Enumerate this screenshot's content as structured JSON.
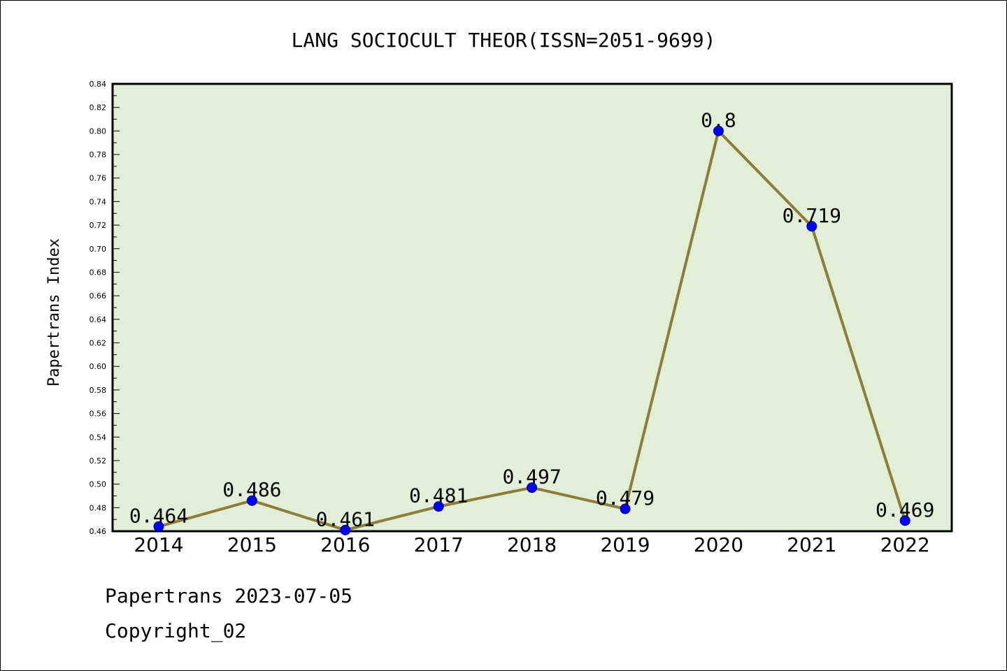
{
  "chart_data": {
    "type": "line",
    "title": "LANG SOCIOCULT THEOR(ISSN=2051-9699)",
    "xlabel": "",
    "ylabel": "Papertrans Index",
    "categories": [
      "2014",
      "2015",
      "2016",
      "2017",
      "2018",
      "2019",
      "2020",
      "2021",
      "2022"
    ],
    "series": [
      {
        "values": [
          0.464,
          0.486,
          0.461,
          0.481,
          0.497,
          0.479,
          0.8,
          0.719,
          0.469
        ],
        "labels": [
          "0.464",
          "0.486",
          "0.461",
          "0.481",
          "0.497",
          "0.479",
          "0.8",
          "0.719",
          "0.469"
        ]
      }
    ],
    "ylim": [
      0.46,
      0.84
    ],
    "yticks": [
      "0.46",
      "0.48",
      "0.50",
      "0.52",
      "0.54",
      "0.56",
      "0.58",
      "0.60",
      "0.62",
      "0.64",
      "0.66",
      "0.68",
      "0.70",
      "0.72",
      "0.74",
      "0.76",
      "0.78",
      "0.80",
      "0.82",
      "0.84"
    ],
    "grid": false,
    "legend": "none",
    "colors": {
      "plot_background": "#e2efd6",
      "line": "#8b7d3a",
      "marker": "#0000ff",
      "axes": "#000000"
    }
  },
  "footer": {
    "line1": "Papertrans 2023-07-05",
    "line2": "Copyright_02"
  }
}
